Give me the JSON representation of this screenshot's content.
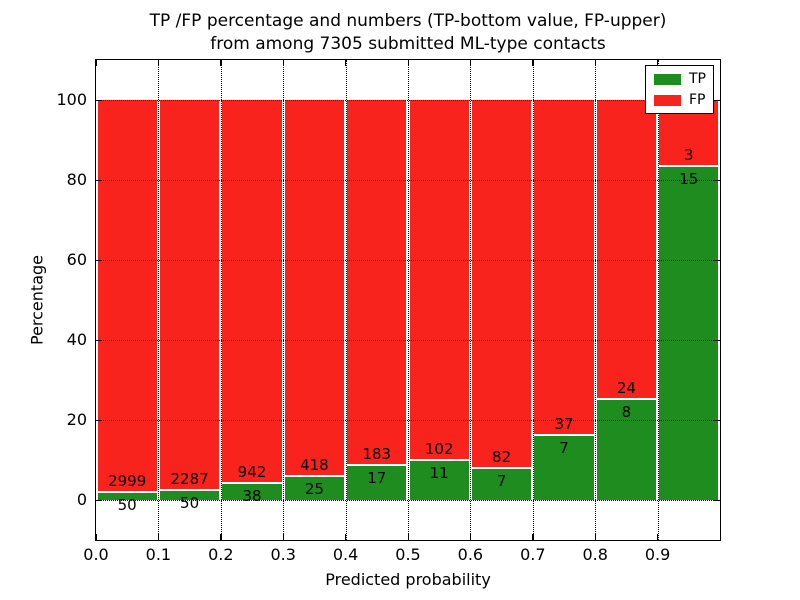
{
  "figure": {
    "title_line1": "TP /FP percentage and numbers (TP-bottom value, FP-upper)",
    "title_line2": "from among 7305 submitted ML-type contacts",
    "xlabel": "Predicted probability",
    "ylabel": "Percentage"
  },
  "legend": {
    "items": [
      {
        "label": "TP",
        "color": "#1f8c1f"
      },
      {
        "label": "FP",
        "color": "#f8231c"
      }
    ]
  },
  "chart_data": {
    "type": "bar",
    "stacked": true,
    "normalized": "each bin scaled to 100%",
    "title": "TP /FP percentage and numbers (TP-bottom value, FP-upper) from among 7305 submitted ML-type contacts",
    "xlabel": "Predicted probability",
    "ylabel": "Percentage",
    "total_contacts": 7305,
    "bin_width": 0.1,
    "categories": [
      "0.0",
      "0.1",
      "0.2",
      "0.3",
      "0.4",
      "0.5",
      "0.6",
      "0.7",
      "0.8",
      "0.9"
    ],
    "series": [
      {
        "name": "TP",
        "color": "#1f8c1f",
        "counts": [
          50,
          50,
          38,
          25,
          17,
          11,
          7,
          7,
          8,
          15
        ]
      },
      {
        "name": "FP",
        "color": "#f8231c",
        "counts": [
          2999,
          2287,
          942,
          418,
          183,
          102,
          82,
          37,
          24,
          3
        ]
      }
    ],
    "tp_percent_per_bin": [
      1.6,
      2.1,
      3.9,
      5.6,
      8.5,
      9.7,
      7.9,
      15.9,
      25.0,
      83.3
    ],
    "xticks": [
      "0.0",
      "0.1",
      "0.2",
      "0.3",
      "0.4",
      "0.5",
      "0.6",
      "0.7",
      "0.8",
      "0.9"
    ],
    "yticks": [
      0,
      20,
      40,
      60,
      80,
      100
    ],
    "xlim": [
      0.0,
      1.0
    ],
    "ylim": [
      -10,
      110
    ],
    "grid": "dotted both axes",
    "legend_position": "upper right"
  }
}
